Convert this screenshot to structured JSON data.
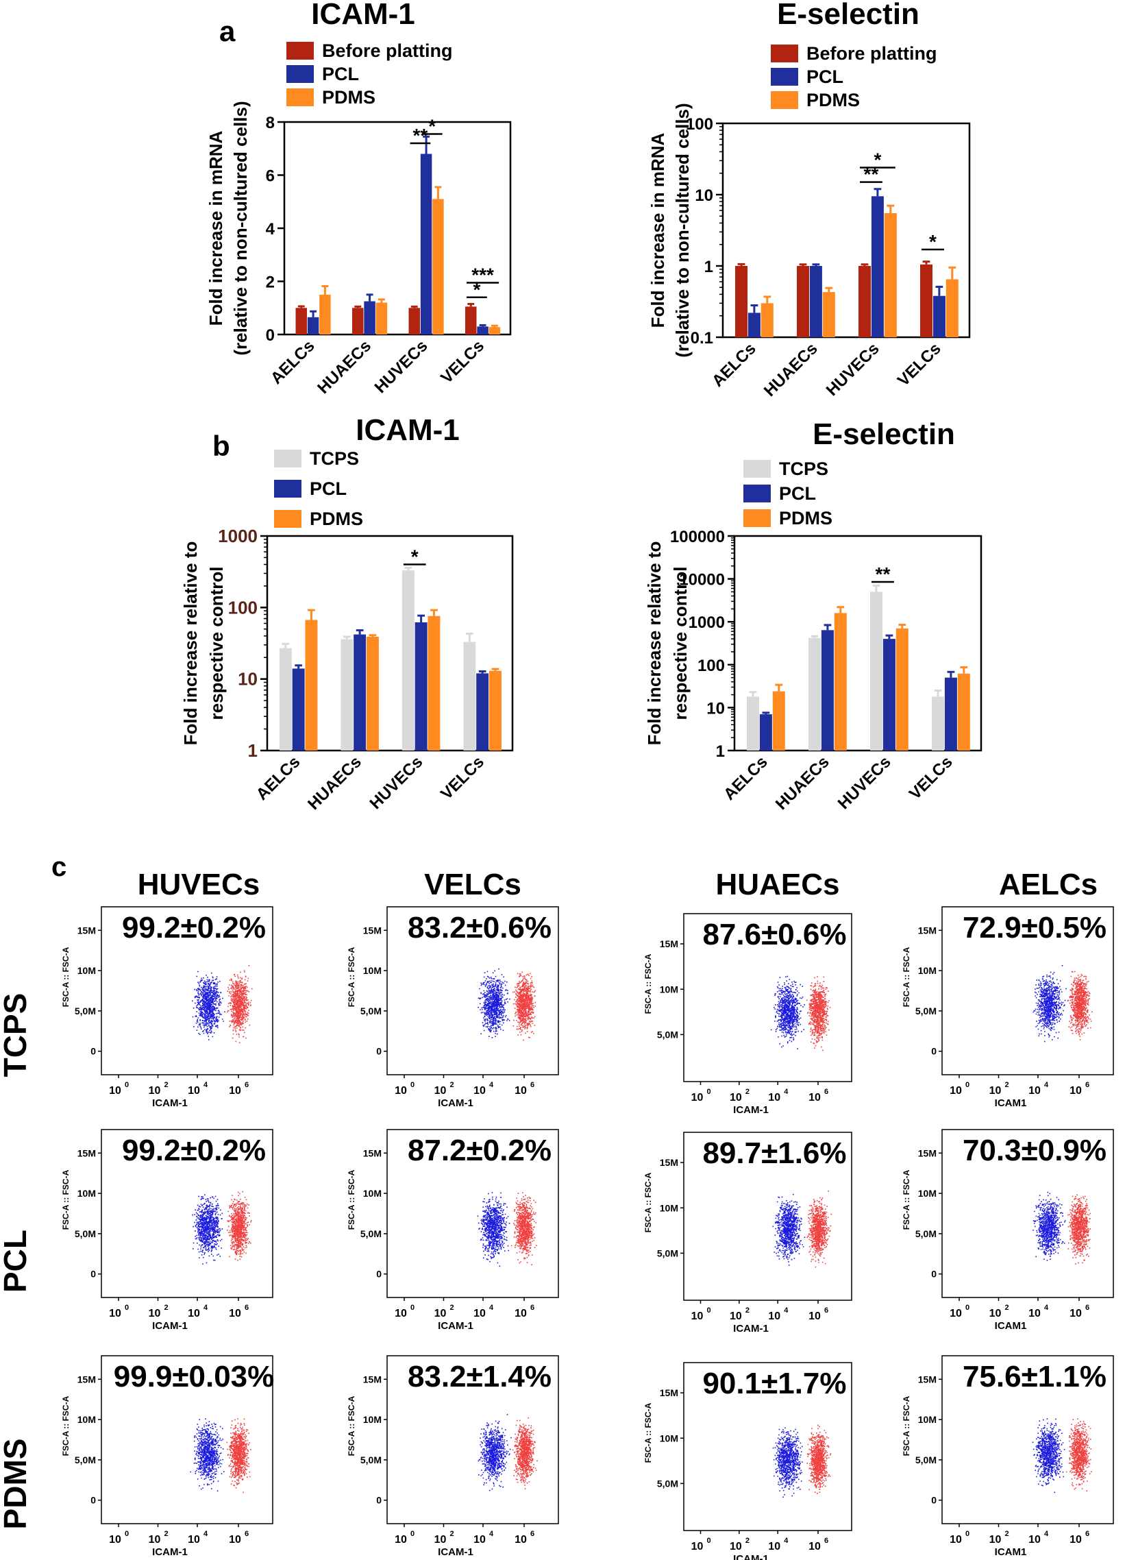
{
  "colors": {
    "before": "#b22410",
    "pcl": "#1f2f9c",
    "pdms": "#ff8a1f",
    "tcps": "#d9d9d9",
    "axis": "#000000",
    "b_tick": "#5a2418",
    "dot_blue": "#1a1adf",
    "dot_red": "#ee2a2a"
  },
  "panel_labels": {
    "a": "a",
    "b": "b",
    "c": "c"
  },
  "chart_data": [
    {
      "id": "a_icam",
      "panel": "a",
      "type": "bar",
      "scale": "linear",
      "title": "ICAM-1",
      "ylabel_lines": [
        "Fold increase in mRNA",
        "(relative to non-cultured cells)"
      ],
      "ylim": [
        0,
        8
      ],
      "yticks": [
        0,
        2,
        4,
        6,
        8
      ],
      "ytick_labels": [
        "0",
        "2",
        "4",
        "6",
        "8"
      ],
      "categories": [
        "AELCs",
        "HUAECs",
        "HUVECs",
        "VELCs"
      ],
      "series": [
        {
          "name": "Before platting",
          "color_key": "before",
          "values": [
            1.0,
            1.0,
            1.0,
            1.05
          ],
          "errors": [
            0.06,
            0.05,
            0.05,
            0.1
          ]
        },
        {
          "name": "PCL",
          "color_key": "pcl",
          "values": [
            0.65,
            1.25,
            6.8,
            0.3
          ],
          "errors": [
            0.22,
            0.25,
            0.65,
            0.05
          ]
        },
        {
          "name": "PDMS",
          "color_key": "pdms",
          "values": [
            1.5,
            1.2,
            5.1,
            0.28
          ],
          "errors": [
            0.32,
            0.12,
            0.45,
            0.05
          ]
        }
      ],
      "annotations": [
        {
          "label": "**",
          "category": 2,
          "from": 0,
          "to": 1,
          "level": 7.2
        },
        {
          "label": "*",
          "category": 2,
          "from": 1,
          "to": 2,
          "level": 7.55
        },
        {
          "label": "***",
          "category": 3,
          "from": 0,
          "to": 2,
          "level": 1.95
        },
        {
          "label": "*",
          "category": 3,
          "from": 0,
          "to": 1,
          "level": 1.4
        }
      ]
    },
    {
      "id": "a_esel",
      "panel": "a",
      "type": "bar",
      "scale": "log",
      "title": "E-selectin",
      "ylabel_lines": [
        "Fold increase in mRNA",
        "(relative to non-cultured cells)"
      ],
      "ylim": [
        0.1,
        100
      ],
      "yticks": [
        0.1,
        1,
        10,
        100
      ],
      "ytick_labels": [
        "0.1",
        "1",
        "10",
        "100"
      ],
      "categories": [
        "AELCs",
        "HUAECs",
        "HUVECs",
        "VELCs"
      ],
      "series": [
        {
          "name": "Before platting",
          "color_key": "before",
          "values": [
            1.0,
            1.0,
            1.0,
            1.05
          ],
          "errors": [
            0.06,
            0.05,
            0.05,
            0.1
          ]
        },
        {
          "name": "PCL",
          "color_key": "pcl",
          "values": [
            0.22,
            1.0,
            9.5,
            0.38
          ],
          "errors": [
            0.06,
            0.05,
            2.5,
            0.13
          ]
        },
        {
          "name": "PDMS",
          "color_key": "pdms",
          "values": [
            0.3,
            0.43,
            5.5,
            0.65
          ],
          "errors": [
            0.07,
            0.06,
            1.5,
            0.3
          ]
        }
      ],
      "annotations": [
        {
          "label": "**",
          "category": 2,
          "from": 0,
          "to": 1,
          "level": 15
        },
        {
          "label": "*",
          "category": 2,
          "from": 0,
          "to": 2,
          "level": 24
        },
        {
          "label": "*",
          "category": 3,
          "from": 0,
          "to": 1,
          "level": 1.7
        }
      ]
    },
    {
      "id": "b_icam",
      "panel": "b",
      "type": "bar",
      "scale": "log",
      "title": "ICAM-1",
      "ylabel_lines": [
        "Fold increase relative to",
        "respective control"
      ],
      "ylim": [
        1,
        1000
      ],
      "yticks": [
        1,
        10,
        100,
        1000
      ],
      "ytick_labels": [
        "1",
        "10",
        "100",
        "1000"
      ],
      "categories": [
        "AELCs",
        "HUAECs",
        "HUVECs",
        "VELCs"
      ],
      "series": [
        {
          "name": "TCPS",
          "color_key": "tcps",
          "values": [
            27,
            36,
            330,
            33
          ],
          "errors": [
            4,
            3,
            30,
            10
          ]
        },
        {
          "name": "PCL",
          "color_key": "pcl",
          "values": [
            14,
            42,
            62,
            12
          ],
          "errors": [
            1.5,
            6,
            15,
            0.8
          ]
        },
        {
          "name": "PDMS",
          "color_key": "pdms",
          "values": [
            67,
            39,
            76,
            13
          ],
          "errors": [
            25,
            2,
            16,
            0.8
          ]
        }
      ],
      "annotations": [
        {
          "label": "*",
          "category": 2,
          "from": 0,
          "to": 1,
          "level": 400
        }
      ]
    },
    {
      "id": "b_esel",
      "panel": "b",
      "type": "bar",
      "scale": "log",
      "title": "E-selectin",
      "ylabel_lines": [
        "Fold increase relative to",
        "respective control"
      ],
      "ylim": [
        1,
        100000
      ],
      "yticks": [
        1,
        10,
        100,
        1000,
        10000,
        100000
      ],
      "ytick_labels": [
        "1",
        "10",
        "100",
        "1000",
        "10000",
        "100000"
      ],
      "categories": [
        "AELCs",
        "HUAECs",
        "HUVECs",
        "VELCs"
      ],
      "series": [
        {
          "name": "TCPS",
          "color_key": "tcps",
          "values": [
            18,
            420,
            5000,
            18
          ],
          "errors": [
            5,
            40,
            2000,
            7
          ]
        },
        {
          "name": "PCL",
          "color_key": "pcl",
          "values": [
            7,
            640,
            400,
            50
          ],
          "errors": [
            0.6,
            200,
            80,
            18
          ]
        },
        {
          "name": "PDMS",
          "color_key": "pdms",
          "values": [
            24,
            1600,
            700,
            62
          ],
          "errors": [
            10,
            600,
            150,
            25
          ]
        }
      ],
      "annotations": [
        {
          "label": "**",
          "category": 2,
          "from": 0,
          "to": 1,
          "level": 8500
        }
      ]
    }
  ],
  "flow": {
    "columns": [
      "HUVECs",
      "VELCs",
      "HUAECs",
      "AELCs"
    ],
    "rows": [
      "TCPS",
      "PCL",
      "PDMS"
    ],
    "xtick_labels": [
      "10",
      "10",
      "10",
      "10"
    ],
    "xtick_exponents": [
      "0",
      "2",
      "4",
      "6"
    ],
    "ytick_labels": [
      "15M",
      "10M",
      "5,0M",
      "0"
    ],
    "ytick_labels_noZero": [
      "15M",
      "10M",
      "5,0M"
    ],
    "ylabel": "FSC-A :: FSC-A",
    "percent": [
      [
        "99.2±0.2%",
        "83.2±0.6%",
        "87.6±0.6%",
        "72.9±0.5%"
      ],
      [
        "99.2±0.2%",
        "87.2±0.2%",
        "89.7±1.6%",
        "70.3±0.9%"
      ],
      [
        "99.9±0.03%",
        "83.2±1.4%",
        "90.1±1.7%",
        "75.6±1.1%"
      ]
    ],
    "xlabel": [
      [
        "ICAM-1",
        "ICAM-1",
        "ICAM-1",
        "ICAM1"
      ],
      [
        "ICAM-1",
        "ICAM-1",
        "ICAM-1",
        "ICAM1"
      ],
      [
        "ICAM-1",
        "ICAM-1",
        "ICAM-1",
        "ICAM1"
      ]
    ]
  }
}
